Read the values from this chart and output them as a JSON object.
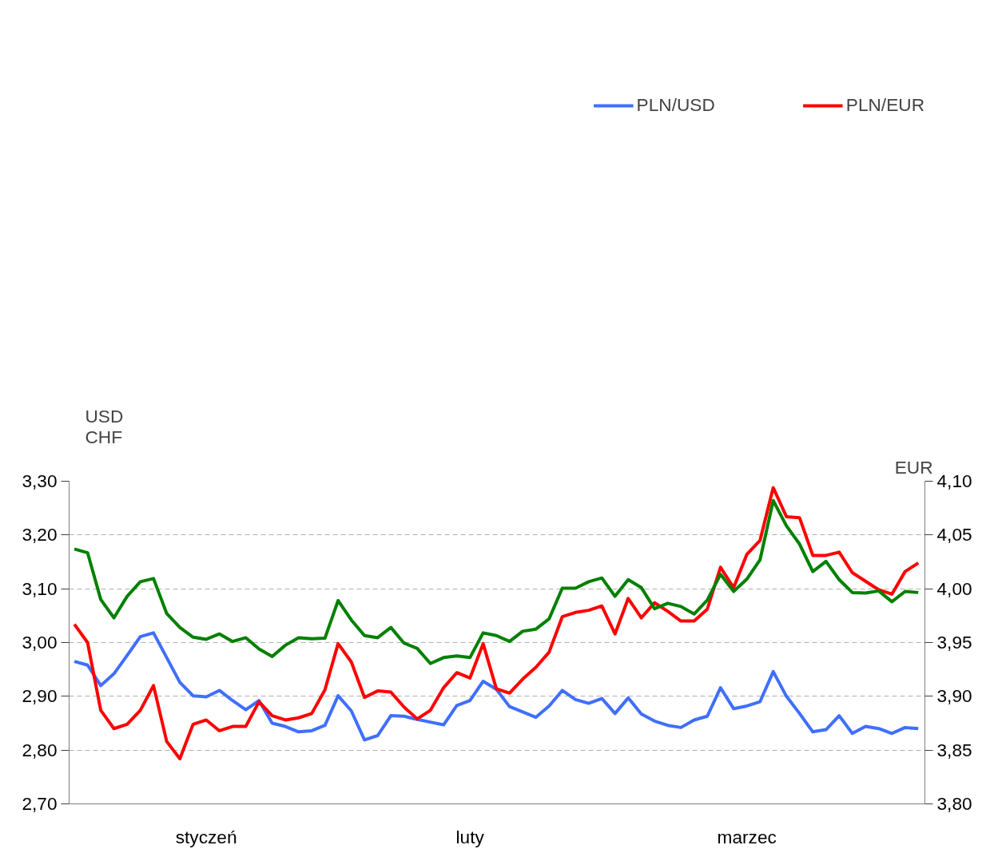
{
  "chart_data": {
    "type": "line",
    "categories": [
      null,
      null,
      null,
      null,
      null,
      null,
      null,
      null,
      null,
      null,
      "styczeń",
      null,
      null,
      null,
      null,
      null,
      null,
      null,
      null,
      null,
      null,
      null,
      null,
      null,
      null,
      null,
      null,
      null,
      null,
      null,
      "luty",
      null,
      null,
      null,
      null,
      null,
      null,
      null,
      null,
      null,
      null,
      null,
      null,
      null,
      null,
      null,
      null,
      null,
      null,
      null,
      null,
      "marzec",
      null,
      null,
      null,
      null,
      null,
      null,
      null,
      null,
      null,
      null,
      null,
      null,
      null
    ],
    "series": [
      {
        "name": "PLN/USD",
        "color": "#3f6fff",
        "values": [
          2.965,
          2.958,
          2.92,
          2.942,
          2.976,
          3.011,
          3.018,
          2.972,
          2.926,
          2.901,
          2.899,
          2.911,
          2.892,
          2.875,
          2.892,
          2.85,
          2.844,
          2.834,
          2.836,
          2.846,
          2.901,
          2.873,
          2.819,
          2.827,
          2.864,
          2.863,
          2.857,
          2.852,
          2.847,
          2.883,
          2.892,
          2.928,
          2.913,
          2.881,
          2.871,
          2.861,
          2.882,
          2.911,
          2.894,
          2.887,
          2.896,
          2.868,
          2.897,
          2.867,
          2.854,
          2.846,
          2.842,
          2.856,
          2.863,
          2.916,
          2.877,
          2.882,
          2.89,
          2.946,
          2.9,
          2.868,
          2.834,
          2.838,
          2.864,
          2.831,
          2.844,
          2.84,
          2.831,
          2.842,
          2.84
        ]
      },
      {
        "name": "PLN/EUR",
        "color": "#ff0000",
        "axis": "y2",
        "values": [
          3.967,
          3.95,
          3.887,
          3.87,
          3.874,
          3.887,
          3.91,
          3.858,
          3.842,
          3.874,
          3.878,
          3.868,
          3.872,
          3.872,
          3.895,
          3.882,
          3.878,
          3.88,
          3.884,
          3.906,
          3.949,
          3.932,
          3.899,
          3.905,
          3.904,
          3.89,
          3.879,
          3.887,
          3.908,
          3.922,
          3.917,
          3.949,
          3.907,
          3.903,
          3.916,
          3.927,
          3.941,
          3.974,
          3.978,
          3.98,
          3.984,
          3.958,
          3.991,
          3.973,
          3.987,
          3.979,
          3.97,
          3.97,
          3.981,
          4.02,
          4.001,
          4.032,
          4.045,
          4.094,
          4.067,
          4.066,
          4.031,
          4.031,
          4.034,
          4.015,
          4.007,
          3.999,
          3.995,
          4.016,
          4.024
        ]
      },
      {
        "color": "#008000",
        "values": [
          3.174,
          3.167,
          3.08,
          3.046,
          3.086,
          3.113,
          3.119,
          3.054,
          3.028,
          3.01,
          3.006,
          3.016,
          3.002,
          3.009,
          2.988,
          2.974,
          2.995,
          3.009,
          3.007,
          3.008,
          3.078,
          3.042,
          3.013,
          3.009,
          3.028,
          2.999,
          2.989,
          2.961,
          2.972,
          2.975,
          2.972,
          3.018,
          3.013,
          3.002,
          3.021,
          3.025,
          3.044,
          3.101,
          3.101,
          3.113,
          3.12,
          3.086,
          3.117,
          3.102,
          3.063,
          3.073,
          3.067,
          3.053,
          3.079,
          3.127,
          3.095,
          3.118,
          3.154,
          3.264,
          3.217,
          3.183,
          3.132,
          3.151,
          3.117,
          3.093,
          3.092,
          3.096,
          3.076,
          3.095,
          3.093
        ]
      }
    ],
    "ylabel": "USD\nCHF",
    "y2label": "EUR",
    "ylim": [
      2.7,
      3.3
    ],
    "yticks": [
      {
        "value": 2.7,
        "label": "2,70"
      },
      {
        "value": 2.8,
        "label": "2,80"
      },
      {
        "value": 2.9,
        "label": "2,90"
      },
      {
        "value": 3.0,
        "label": "3,00"
      },
      {
        "value": 3.1,
        "label": "3,10"
      },
      {
        "value": 3.2,
        "label": "3,20"
      },
      {
        "value": 3.3,
        "label": "3,30"
      }
    ],
    "y2lim": [
      3.8,
      4.1
    ],
    "y2ticks": [
      {
        "value": 3.8,
        "label": "3,80"
      },
      {
        "value": 3.85,
        "label": "3,85"
      },
      {
        "value": 3.9,
        "label": "3,90"
      },
      {
        "value": 3.95,
        "label": "3,95"
      },
      {
        "value": 4.0,
        "label": "4,00"
      },
      {
        "value": 4.05,
        "label": "4,05"
      },
      {
        "value": 4.1,
        "label": "4,10"
      }
    ],
    "grid": "y",
    "legend": "top right",
    "line_style": "solid"
  }
}
